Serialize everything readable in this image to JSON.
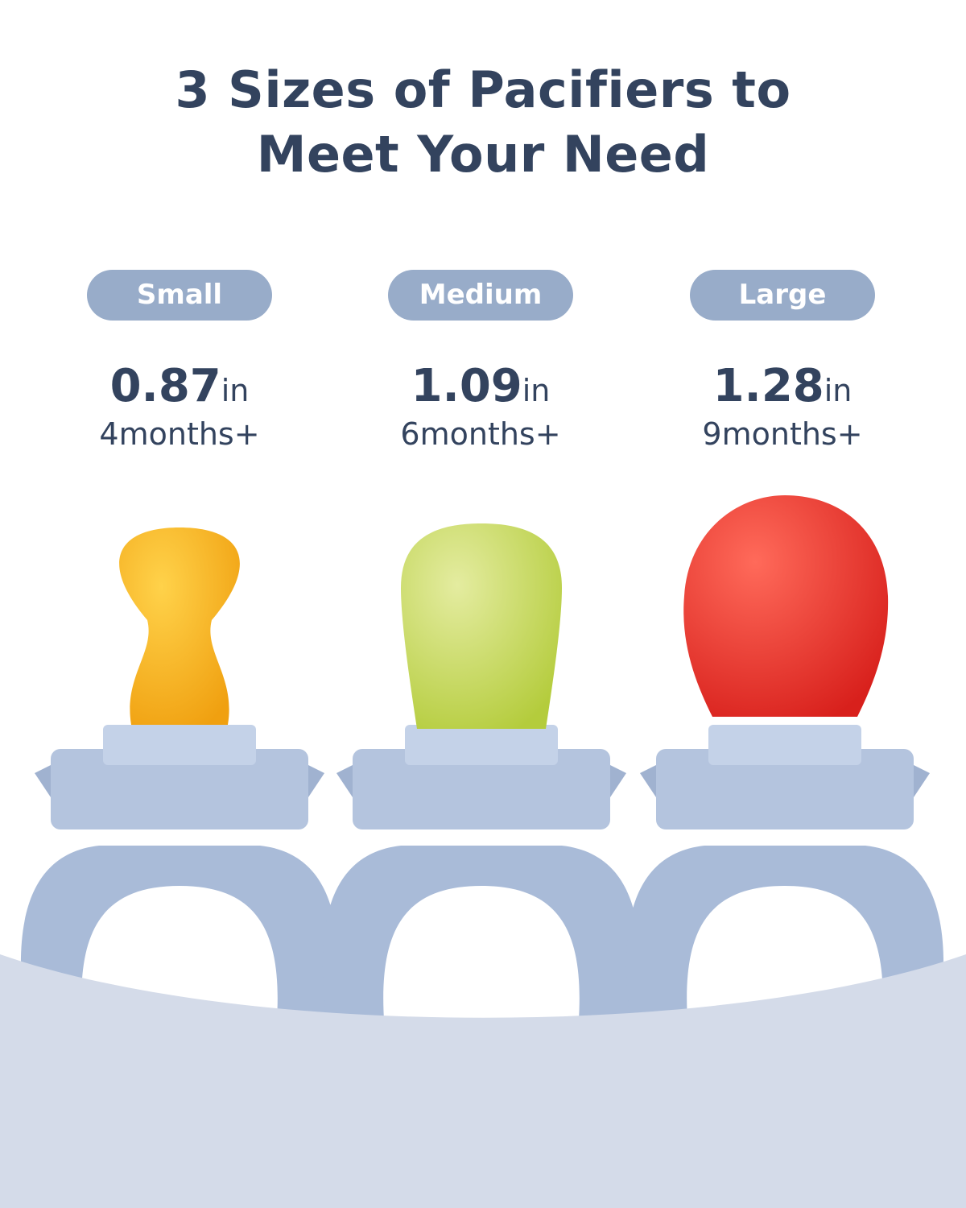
{
  "title": {
    "line1": "3 Sizes of Pacifiers to",
    "line2": "Meet Your Need"
  },
  "colors": {
    "text": "#33435e",
    "pill": "#98acc9",
    "feeder": "#a9bbd8",
    "wave": "#d4dbe9"
  },
  "sizes": [
    {
      "label": "Small",
      "value": "0.87",
      "unit": "in",
      "age": "4months+",
      "fruit_color": "#f5b21a"
    },
    {
      "label": "Medium",
      "value": "1.09",
      "unit": "in",
      "age": "6months+",
      "fruit_color": "#c8d85a"
    },
    {
      "label": "Large",
      "value": "1.28",
      "unit": "in",
      "age": "9months+",
      "fruit_color": "#e8352c"
    }
  ]
}
